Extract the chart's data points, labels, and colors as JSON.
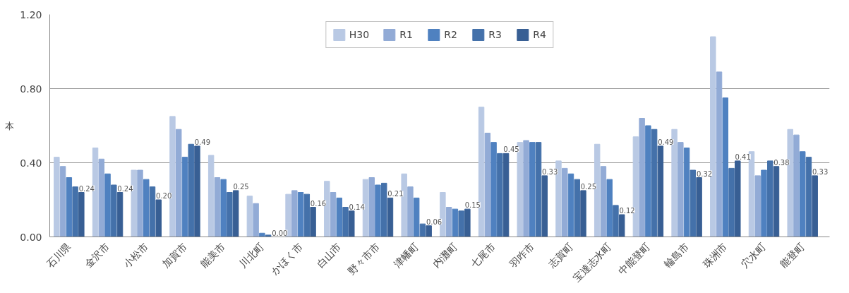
{
  "chart_data": {
    "type": "bar",
    "ylabel": "本",
    "categories": [
      "石川県",
      "金沢市",
      "小松市",
      "加賀市",
      "能美市",
      "川北町",
      "かほく市",
      "白山市",
      "野々市市",
      "津幡町",
      "内灘町",
      "七尾市",
      "羽咋市",
      "志賀町",
      "宝達志水町",
      "中能登町",
      "輪島市",
      "珠洲市",
      "穴水町",
      "能登町"
    ],
    "series": [
      {
        "name": "H30",
        "color": "#b9c9e4",
        "values": [
          0.43,
          0.48,
          0.36,
          0.65,
          0.44,
          0.22,
          0.23,
          0.3,
          0.31,
          0.34,
          0.24,
          0.7,
          0.51,
          0.41,
          0.5,
          0.54,
          0.58,
          1.08,
          0.46,
          0.58
        ]
      },
      {
        "name": "R1",
        "color": "#92abd6",
        "values": [
          0.38,
          0.42,
          0.36,
          0.58,
          0.32,
          0.18,
          0.25,
          0.24,
          0.32,
          0.27,
          0.16,
          0.56,
          0.52,
          0.37,
          0.38,
          0.64,
          0.51,
          0.89,
          0.33,
          0.55
        ]
      },
      {
        "name": "R2",
        "color": "#4f81c0",
        "values": [
          0.32,
          0.34,
          0.31,
          0.43,
          0.31,
          0.02,
          0.24,
          0.21,
          0.28,
          0.21,
          0.15,
          0.51,
          0.51,
          0.34,
          0.31,
          0.6,
          0.48,
          0.75,
          0.36,
          0.46
        ]
      },
      {
        "name": "R3",
        "color": "#4471aa",
        "values": [
          0.27,
          0.28,
          0.27,
          0.5,
          0.24,
          0.01,
          0.23,
          0.16,
          0.29,
          0.07,
          0.14,
          0.45,
          0.51,
          0.31,
          0.17,
          0.58,
          0.36,
          0.37,
          0.41,
          0.43
        ]
      },
      {
        "name": "R4",
        "color": "#385f94",
        "values": [
          0.24,
          0.24,
          0.2,
          0.49,
          0.25,
          0.0,
          0.16,
          0.14,
          0.21,
          0.06,
          0.15,
          0.45,
          0.33,
          0.25,
          0.12,
          0.49,
          0.32,
          0.41,
          0.38,
          0.33
        ],
        "value_labels": [
          "0.24",
          "0.24",
          "0.20",
          "0.49",
          "0.25",
          "0.00",
          "0.16",
          "0.14",
          "0.21",
          "0.06",
          "0.15",
          "0.45",
          "0.33",
          "0.25",
          "0.12",
          "0.49",
          "0.32",
          "0.41",
          "0.38",
          "0.33"
        ]
      }
    ],
    "ylim": [
      0,
      1.2
    ],
    "yticks": [
      {
        "value": 0,
        "label": "0.00"
      },
      {
        "value": 0.4,
        "label": "0.40"
      },
      {
        "value": 0.8,
        "label": "0.80"
      },
      {
        "value": 1.2,
        "label": "1.20"
      }
    ],
    "grid": "y",
    "legend": "top"
  }
}
